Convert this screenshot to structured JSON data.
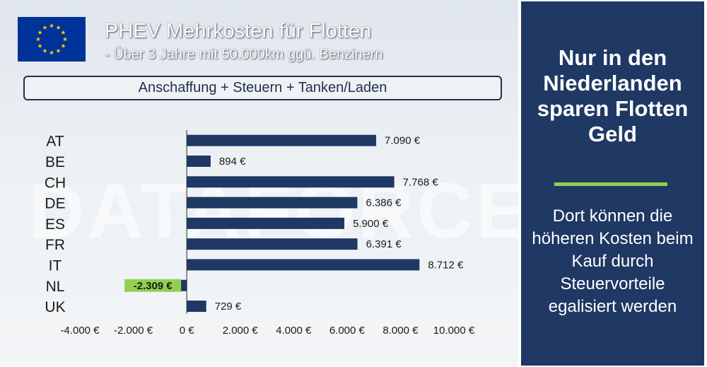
{
  "header": {
    "title": "PHEV Mehrkosten für Flotten",
    "subtitle": "- Über 3 Jahre mit 50.000km ggü. Benzinern",
    "caption": "Anschaffung + Steuern + Tanken/Laden",
    "watermark": "DATAFORCE"
  },
  "flag_icon": "eu-flag-icon",
  "colors": {
    "bar": "#1f3864",
    "negative_highlight": "#92d050",
    "panel": "#1f3864",
    "accent_line": "#92d050"
  },
  "chart_data": {
    "type": "bar",
    "orientation": "horizontal",
    "categories": [
      "AT",
      "BE",
      "CH",
      "DE",
      "ES",
      "FR",
      "IT",
      "NL",
      "UK"
    ],
    "values": [
      7090,
      894,
      7768,
      6386,
      5900,
      6391,
      8712,
      -2309,
      729
    ],
    "data_labels": [
      "7.090 €",
      "894 €",
      "7.768 €",
      "6.386 €",
      "5.900 €",
      "6.391 €",
      "8.712 €",
      "-2.309 €",
      "729 €"
    ],
    "xlim": [
      -4000,
      10000
    ],
    "x_ticks": [
      -4000,
      -2000,
      0,
      2000,
      4000,
      6000,
      8000,
      10000
    ],
    "x_tick_labels": [
      "-4.000 €",
      "-2.000 €",
      "0 €",
      "2.000 €",
      "4.000 €",
      "6.000 €",
      "8.000 €",
      "10.000 €"
    ],
    "grid": false,
    "highlighted_category": "NL"
  },
  "side_panel": {
    "headline": "Nur in den Niederlanden sparen Flotten Geld",
    "body": "Dort können die höheren Kosten beim Kauf durch Steuervorteile egalisiert werden"
  }
}
